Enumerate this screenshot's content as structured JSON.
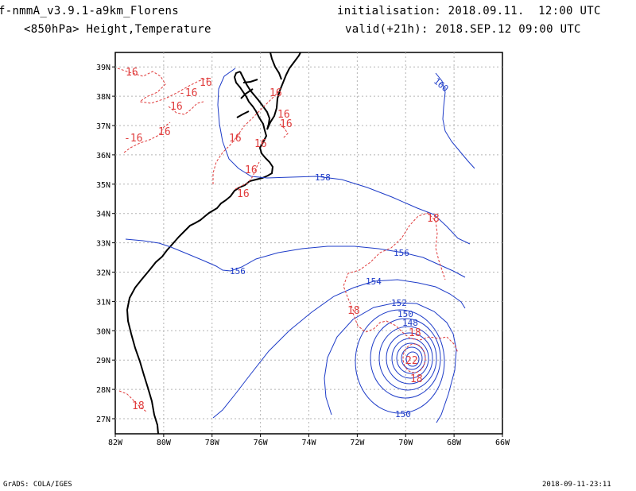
{
  "header": {
    "model": "f-nmmA_v3.9.1-a9km_Florens",
    "field": "<850hPa> Height,Temperature",
    "init": "initialisation: 2018.09.11.  12:00 UTC",
    "valid": "valid(+21h): 2018.SEP.12 09:00 UTC"
  },
  "footer": {
    "credit": "GrADS: COLA/IGES",
    "timestamp": "2018-09-11-23:11"
  },
  "map": {
    "x_ticks": [
      "82W",
      "80W",
      "78W",
      "76W",
      "74W",
      "72W",
      "70W",
      "68W",
      "66W"
    ],
    "y_ticks": [
      "27N",
      "28N",
      "29N",
      "30N",
      "31N",
      "32N",
      "33N",
      "34N",
      "35N",
      "36N",
      "37N",
      "38N",
      "39N"
    ],
    "colors": {
      "height": "#1e3cc8",
      "temperature": "#e03c3c",
      "coast": "#000000",
      "grid": "#b4b4b4"
    },
    "height_labels": [
      "160",
      "158",
      "156",
      "156",
      "154",
      "152",
      "150",
      "148",
      "150"
    ],
    "temp_labels": [
      "16",
      "-16",
      "16",
      "16",
      "16",
      "16",
      "16",
      "16",
      "16",
      "16",
      "16",
      "16",
      "-16",
      "18",
      "18",
      "18",
      "22",
      "18",
      "18"
    ]
  }
}
